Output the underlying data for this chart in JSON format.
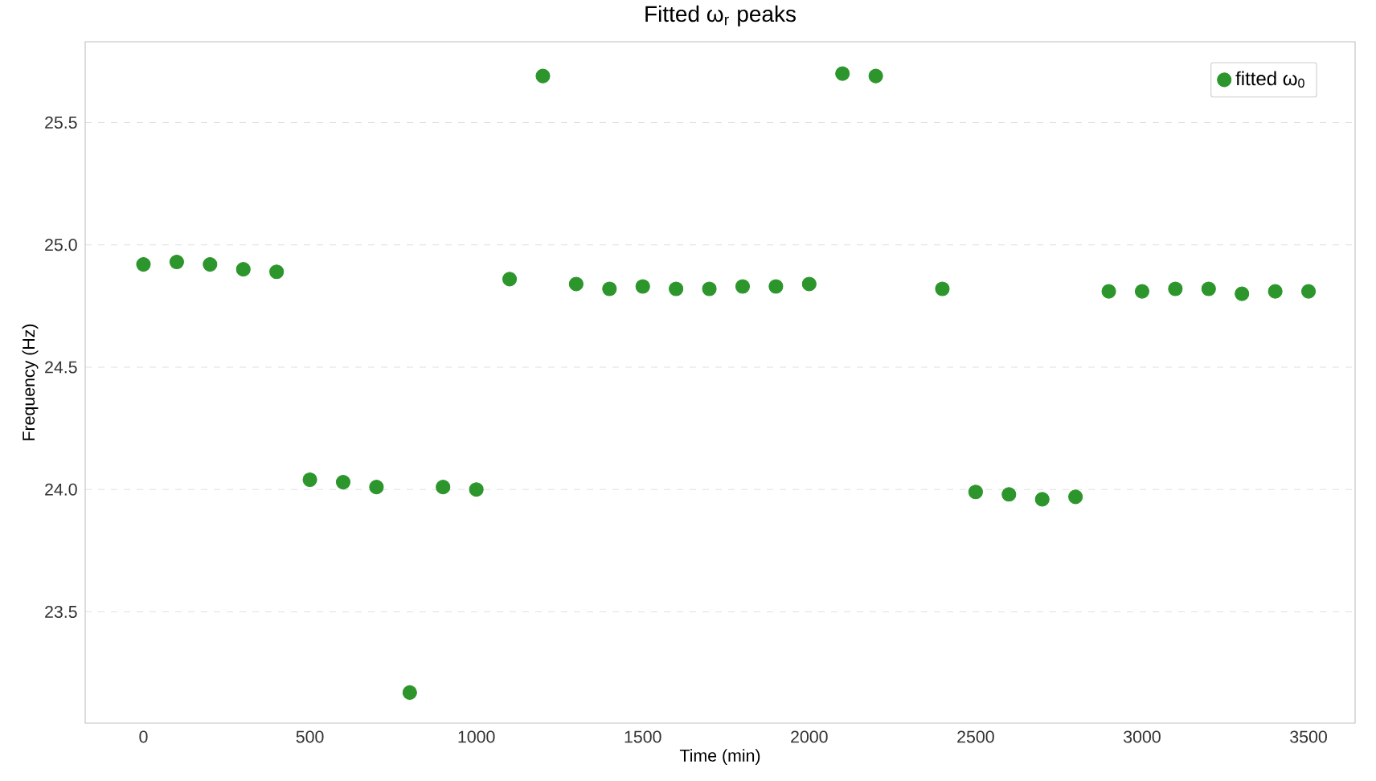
{
  "chart_data": {
    "type": "scatter",
    "title": "Fitted ω$_{r}$ peaks",
    "xlabel": "Time (min)",
    "ylabel": "Frequency (Hz)",
    "x": [
      0,
      100,
      200,
      300,
      400,
      500,
      600,
      700,
      800,
      900,
      1000,
      1100,
      1200,
      1300,
      1400,
      1500,
      1600,
      1700,
      1800,
      1900,
      2000,
      2100,
      2200,
      2400,
      2500,
      2600,
      2700,
      2800,
      2900,
      3000,
      3100,
      3200,
      3300,
      3400,
      3500
    ],
    "series": [
      {
        "name": "fitted ω$_{0}$",
        "color": "#2c962c",
        "values": [
          24.92,
          24.93,
          24.92,
          24.9,
          24.89,
          24.04,
          24.03,
          24.01,
          23.17,
          24.01,
          24.0,
          24.86,
          25.69,
          24.84,
          24.82,
          24.83,
          24.82,
          24.82,
          24.83,
          24.83,
          24.84,
          25.7,
          25.69,
          24.82,
          23.99,
          23.98,
          23.96,
          23.97,
          24.81,
          24.81,
          24.82,
          24.82,
          24.8,
          24.81,
          24.81
        ]
      }
    ],
    "xlim": [
      -175,
      3640
    ],
    "ylim": [
      23.045,
      25.83
    ],
    "xticks": [
      0,
      500,
      1000,
      1500,
      2000,
      2500,
      3000,
      3500
    ],
    "yticks": [
      {
        "value": 23.5,
        "label": "23.5"
      },
      {
        "value": 24,
        "label": "24.0"
      },
      {
        "value": 24.5,
        "label": "24.5"
      },
      {
        "value": 25,
        "label": "25.0"
      },
      {
        "value": 25.5,
        "label": "25.5"
      }
    ],
    "grid": "y",
    "legend": "top right",
    "marker": "circle"
  }
}
